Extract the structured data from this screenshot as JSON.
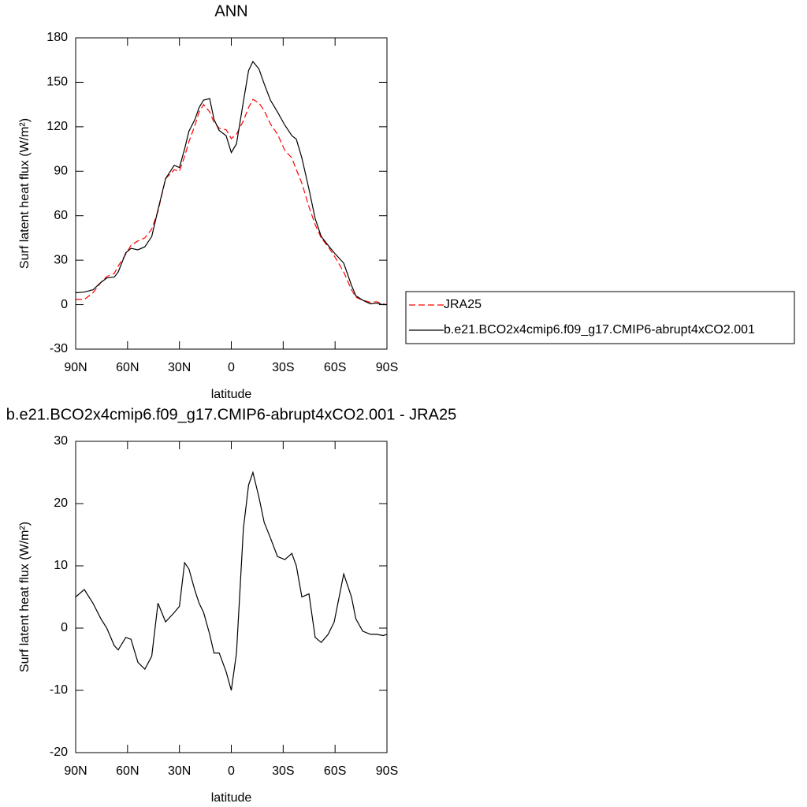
{
  "chart_data": [
    {
      "type": "line",
      "title": "ANN",
      "x_label": "latitude",
      "y_label": "Surf latent heat flux (W/m²)",
      "x": [
        90,
        85,
        80,
        75.4,
        72,
        67.7,
        65.4,
        61,
        58,
        54,
        50,
        46,
        42.4,
        38,
        33,
        30,
        27,
        24.5,
        21,
        18.6,
        16,
        12.5,
        10,
        7,
        3,
        0,
        -3,
        -7,
        -10,
        -12.5,
        -16,
        -19,
        -22.6,
        -26.7,
        -31,
        -35,
        -37.6,
        -40.8,
        -44.9,
        -48.5,
        -52,
        -56,
        -59.5,
        -65,
        -69.5,
        -72,
        -76,
        -80.5,
        -84,
        -87.8,
        -90
      ],
      "series": [
        {
          "name": "JRA25",
          "color": "#ff0000",
          "dashed": true,
          "values": [
            3.5,
            3.5,
            8,
            15,
            19,
            21,
            26,
            34,
            40,
            43,
            45,
            51,
            63,
            85,
            91,
            90,
            100,
            110,
            121,
            130,
            135,
            130,
            123,
            119,
            118,
            112,
            115,
            124,
            133,
            138.5,
            136,
            131,
            122,
            115,
            104,
            99,
            91,
            82,
            66,
            54,
            45,
            39,
            33,
            22,
            10,
            5,
            3,
            1.5,
            2,
            0.5,
            0
          ]
        },
        {
          "name": "b.e21.BCO2x4cmip6.f09_g17.CMIP6-abrupt4xCO2.001",
          "color": "#000000",
          "dashed": false,
          "values": [
            8,
            8.5,
            10,
            15,
            18,
            18.6,
            22,
            35,
            38,
            37,
            39,
            46,
            64,
            85,
            94,
            92.5,
            105,
            117,
            125,
            133,
            138,
            139,
            125,
            117.5,
            114,
            102.6,
            108.5,
            137,
            158,
            164,
            159,
            149,
            138,
            130,
            121,
            114,
            111.6,
            99,
            78,
            58,
            46,
            40,
            35,
            28,
            13,
            6,
            3,
            0.5,
            1,
            0,
            0
          ]
        }
      ],
      "xlim": [
        90,
        -90
      ],
      "xticks": [
        {
          "value": 90,
          "label": "90N"
        },
        {
          "value": 60,
          "label": "60N"
        },
        {
          "value": 30,
          "label": "30N"
        },
        0,
        {
          "value": -30,
          "label": "30S"
        },
        {
          "value": -60,
          "label": "60S"
        },
        {
          "value": -90,
          "label": "90S"
        }
      ],
      "ylim": [
        -30,
        180
      ],
      "yticks": [
        -30,
        0,
        30,
        60,
        90,
        120,
        150,
        180
      ],
      "legend": "right"
    },
    {
      "type": "line",
      "title": "b.e21.BCO2x4cmip6.f09_g17.CMIP6-abrupt4xCO2.001 - JRA25",
      "x_label": "latitude",
      "y_label": "Surf latent heat flux (W/m²)",
      "x": [
        90,
        85,
        80,
        75.4,
        72,
        67.7,
        65.4,
        61,
        58,
        54,
        50,
        46,
        42.4,
        38,
        33,
        30,
        27,
        24.5,
        21,
        18.6,
        16,
        12.5,
        10,
        7,
        3,
        0,
        -3,
        -7,
        -10,
        -12.5,
        -16,
        -19,
        -22.6,
        -26.7,
        -31,
        -35,
        -37.6,
        -40.8,
        -44.9,
        -48.5,
        -52,
        -56,
        -59.5,
        -65,
        -69.5,
        -72,
        -76,
        -80.5,
        -84,
        -87.8,
        -90
      ],
      "color": "#000000",
      "values": [
        5,
        6.2,
        4,
        1.5,
        0,
        -2.8,
        -3.5,
        -1.5,
        -1.8,
        -5.5,
        -6.6,
        -4.5,
        4,
        1,
        2.5,
        3.5,
        10.5,
        9.5,
        6,
        4,
        2.5,
        -1,
        -4,
        -4,
        -7,
        -10,
        -4,
        16,
        23,
        25,
        21,
        17,
        14.5,
        11.5,
        11,
        12,
        10,
        5,
        5.5,
        -1.5,
        -2.3,
        -1,
        1,
        8.7,
        5,
        1.5,
        -0.5,
        -1,
        -1,
        -1.2,
        -1
      ],
      "xlim": [
        90,
        -90
      ],
      "xticks": [
        {
          "value": 90,
          "label": "90N"
        },
        {
          "value": 60,
          "label": "60N"
        },
        {
          "value": 30,
          "label": "30N"
        },
        0,
        {
          "value": -30,
          "label": "30S"
        },
        {
          "value": -60,
          "label": "60S"
        },
        {
          "value": -90,
          "label": "90S"
        }
      ],
      "ylim": [
        -20,
        30
      ],
      "yticks": [
        -20,
        -10,
        0,
        10,
        20,
        30
      ]
    }
  ]
}
